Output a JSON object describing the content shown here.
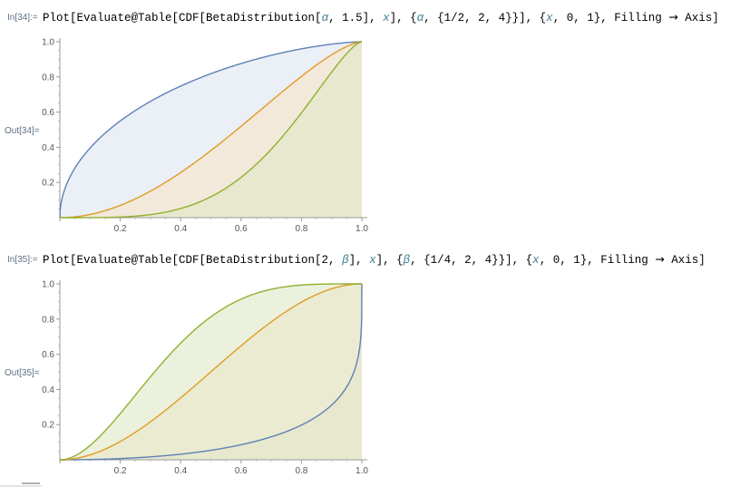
{
  "cells": [
    {
      "in_label": "In[34]:=",
      "out_label": "Out[34]=",
      "code": {
        "p1": "Plot[Evaluate@Table[CDF[BetaDistribution[",
        "s1": "α",
        "p2": ", 1.5], ",
        "s2": "x",
        "p3": "], {",
        "s3": "α",
        "p4": ", {1/2, 2, 4}}], {",
        "s4": "x",
        "p5": ", 0, 1}, Filling ",
        "arrow": "→",
        "p6": " Axis]"
      },
      "chart_data": {
        "type": "area",
        "function": "CDF[BetaDistribution[α, 1.5], x]",
        "parameter": "α",
        "parameter_values": [
          0.5,
          2,
          4
        ],
        "fixed": {
          "beta": 1.5
        },
        "filling": "Axis",
        "xlim": [
          0,
          1
        ],
        "ylim": [
          0,
          1
        ],
        "x_ticks": [
          "0.2",
          "0.4",
          "0.6",
          "0.8",
          "1.0"
        ],
        "y_ticks": [
          "0.2",
          "0.4",
          "0.6",
          "0.8",
          "1.0"
        ],
        "series": [
          {
            "color": "#5e81b5",
            "fill": "#dde4f0"
          },
          {
            "color": "#e19c24",
            "fill": "#f6e4c8"
          },
          {
            "color": "#8fb131",
            "fill": "#dfe8c6"
          }
        ]
      }
    },
    {
      "in_label": "In[35]:=",
      "out_label": "Out[35]=",
      "code": {
        "p1": "Plot[Evaluate@Table[CDF[BetaDistribution[2, ",
        "s1": "β",
        "p2": "], ",
        "s2": "x",
        "p3": "], {",
        "s3": "β",
        "p4": ", {1/4, 2, 4}}], {",
        "s4": "x",
        "p5": ", 0, 1}, Filling ",
        "arrow": "→",
        "p6": " Axis]"
      },
      "chart_data": {
        "type": "area",
        "function": "CDF[BetaDistribution[2, β], x]",
        "parameter": "β",
        "parameter_values": [
          0.25,
          2,
          4
        ],
        "fixed": {
          "alpha": 2
        },
        "filling": "Axis",
        "xlim": [
          0,
          1
        ],
        "ylim": [
          0,
          1
        ],
        "x_ticks": [
          "0.2",
          "0.4",
          "0.6",
          "0.8",
          "1.0"
        ],
        "y_ticks": [
          "0.2",
          "0.4",
          "0.6",
          "0.8",
          "1.0"
        ],
        "series": [
          {
            "color": "#5e81b5",
            "fill": "#dde4f0"
          },
          {
            "color": "#e19c24",
            "fill": "#f6e4c8"
          },
          {
            "color": "#8fb131",
            "fill": "#dfe8c6"
          }
        ]
      }
    }
  ]
}
